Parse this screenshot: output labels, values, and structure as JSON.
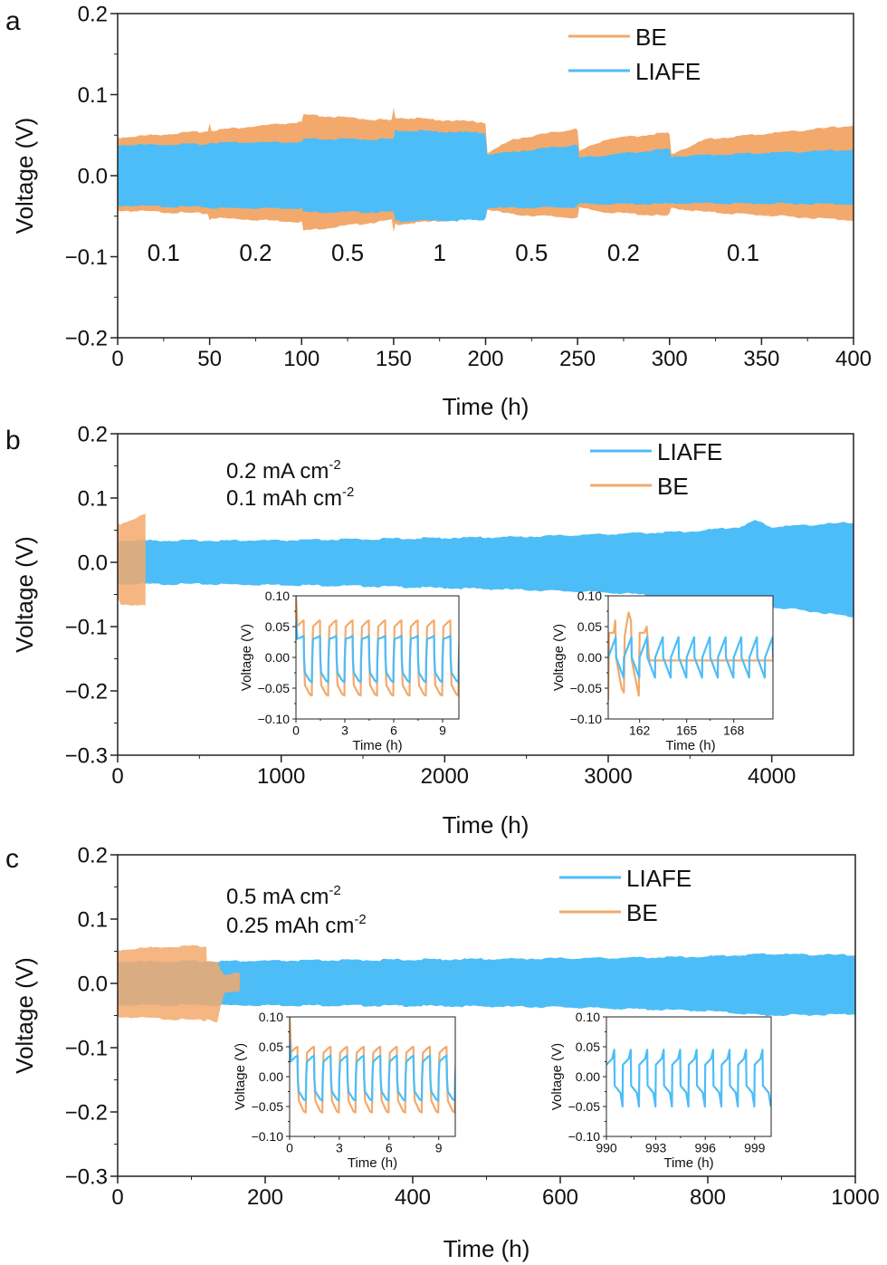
{
  "colors": {
    "BE": "#f3a96c",
    "LIAFE": "#4dbdf7",
    "overlap": "#d7a07a",
    "axis": "#222222"
  },
  "chart_data": [
    {
      "panel": "a",
      "type": "area",
      "title": "",
      "xlabel": "Time (h)",
      "ylabel": "Voltage (V)",
      "xlim": [
        0,
        400
      ],
      "ylim": [
        -0.2,
        0.2
      ],
      "xticks": [
        0,
        50,
        100,
        150,
        200,
        250,
        300,
        350,
        400
      ],
      "yticks": [
        -0.2,
        -0.1,
        0.0,
        0.1,
        0.2
      ],
      "ytick_labels": [
        "−0.2",
        "−0.1",
        "0.0",
        "0.1",
        "0.2"
      ],
      "legend": {
        "position": "top-right",
        "entries": [
          "BE",
          "LIAFE"
        ]
      },
      "annotations": [
        {
          "text": "0.1",
          "x": 25
        },
        {
          "text": "0.2",
          "x": 75
        },
        {
          "text": "0.5",
          "x": 125
        },
        {
          "text": "1",
          "x": 175
        },
        {
          "text": "0.5",
          "x": 225
        },
        {
          "text": "0.2",
          "x": 275
        },
        {
          "text": "0.1",
          "x": 340
        }
      ],
      "series": [
        {
          "name": "BE",
          "kind": "envelope",
          "x": [
            0,
            49,
            50,
            51,
            100,
            101,
            149,
            150,
            151,
            199,
            200,
            201,
            215,
            249,
            250,
            251,
            265,
            299,
            300,
            301,
            320,
            400
          ],
          "upper": [
            0.047,
            0.055,
            0.065,
            0.056,
            0.066,
            0.075,
            0.068,
            0.083,
            0.072,
            0.066,
            0.065,
            0.028,
            0.045,
            0.058,
            0.056,
            0.03,
            0.045,
            0.053,
            0.05,
            0.027,
            0.045,
            0.062
          ],
          "lower": [
            -0.043,
            -0.047,
            -0.055,
            -0.052,
            -0.057,
            -0.068,
            -0.055,
            -0.07,
            -0.06,
            -0.052,
            -0.052,
            -0.042,
            -0.048,
            -0.052,
            -0.052,
            -0.04,
            -0.045,
            -0.05,
            -0.047,
            -0.04,
            -0.045,
            -0.055
          ]
        },
        {
          "name": "LIAFE",
          "kind": "envelope",
          "x": [
            0,
            49,
            50,
            100,
            101,
            150,
            151,
            199,
            200,
            201,
            249,
            250,
            251,
            299,
            300,
            301,
            400
          ],
          "upper": [
            0.038,
            0.039,
            0.041,
            0.041,
            0.045,
            0.045,
            0.056,
            0.053,
            0.05,
            0.026,
            0.038,
            0.037,
            0.022,
            0.033,
            0.032,
            0.024,
            0.032
          ],
          "lower": [
            -0.037,
            -0.039,
            -0.04,
            -0.04,
            -0.045,
            -0.045,
            -0.056,
            -0.055,
            -0.051,
            -0.04,
            -0.039,
            -0.037,
            -0.035,
            -0.035,
            -0.035,
            -0.034,
            -0.035
          ]
        }
      ]
    },
    {
      "panel": "b",
      "type": "area",
      "title": "",
      "xlabel": "Time (h)",
      "ylabel": "Voltage (V)",
      "xlim": [
        0,
        4500
      ],
      "ylim": [
        -0.3,
        0.2
      ],
      "xticks": [
        0,
        1000,
        2000,
        3000,
        4000
      ],
      "yticks": [
        -0.3,
        -0.2,
        -0.1,
        0.0,
        0.1,
        0.2
      ],
      "ytick_labels": [
        "−0.3",
        "−0.2",
        "−0.1",
        "0.0",
        "0.1",
        "0.2"
      ],
      "legend": {
        "position": "top-right",
        "entries": [
          "LIAFE",
          "BE"
        ]
      },
      "annotations": [
        {
          "text": "0.2   mA cm",
          "sup": "-2"
        },
        {
          "text": "0.1 mAh cm",
          "sup": "-2"
        }
      ],
      "series": [
        {
          "name": "BE",
          "kind": "envelope",
          "x": [
            0,
            20,
            170,
            171
          ],
          "upper": [
            0.06,
            0.06,
            0.075,
            0.0
          ],
          "lower": [
            -0.055,
            -0.065,
            -0.068,
            0.0
          ]
        },
        {
          "name": "LIAFE",
          "kind": "envelope",
          "x": [
            0,
            500,
            1000,
            1500,
            2000,
            2500,
            3000,
            3500,
            3800,
            3900,
            4000,
            4200,
            4500
          ],
          "upper": [
            0.034,
            0.034,
            0.034,
            0.036,
            0.038,
            0.04,
            0.044,
            0.048,
            0.055,
            0.065,
            0.055,
            0.058,
            0.062
          ],
          "lower": [
            -0.034,
            -0.034,
            -0.035,
            -0.037,
            -0.04,
            -0.043,
            -0.047,
            -0.055,
            -0.065,
            -0.09,
            -0.07,
            -0.075,
            -0.085
          ]
        }
      ],
      "insets": [
        {
          "xlabel": "Time (h)",
          "ylabel": "Voltage (V)",
          "xlim": [
            0,
            10
          ],
          "ylim": [
            -0.1,
            0.1
          ],
          "xticks": [
            0,
            3,
            6,
            9
          ],
          "yticks": [
            -0.1,
            -0.05,
            0.0,
            0.05,
            0.1
          ],
          "ytick_labels": [
            "−0.10",
            "−0.05",
            "0.00",
            "0.05",
            "0.10"
          ],
          "series": [
            {
              "name": "BE",
              "kind": "square-wave",
              "start": 0,
              "period": 1.0,
              "first_peak": 0.1,
              "high": [
                0.045,
                0.06
              ],
              "low": [
                -0.045,
                -0.062
              ],
              "cycles": 10
            },
            {
              "name": "LIAFE",
              "kind": "square-wave",
              "start": 0,
              "period": 1.0,
              "first_peak": 0.06,
              "high": [
                0.025,
                0.035
              ],
              "low": [
                -0.025,
                -0.04
              ],
              "cycles": 10
            }
          ]
        },
        {
          "xlabel": "Time (h)",
          "ylabel": "Voltage (V)",
          "xlim": [
            160,
            170.5
          ],
          "ylim": [
            -0.1,
            0.1
          ],
          "xticks": [
            162,
            165,
            168
          ],
          "yticks": [
            -0.1,
            -0.05,
            0.0,
            0.05,
            0.1
          ],
          "ytick_labels": [
            "−0.10",
            "−0.05",
            "0.00",
            "0.05",
            "0.10"
          ],
          "series": [
            {
              "name": "BE",
              "kind": "failure",
              "start": 160,
              "end_active": 162.6,
              "period": 1.0,
              "high": [
                0.04,
                0.073
              ],
              "low": [
                -0.055,
                -0.062
              ],
              "flat": -0.005
            },
            {
              "name": "LIAFE",
              "kind": "sawtooth",
              "start": 160,
              "period": 1.0,
              "high": 0.033,
              "low": -0.033,
              "cycles": 11
            }
          ]
        }
      ]
    },
    {
      "panel": "c",
      "type": "area",
      "title": "",
      "xlabel": "Time (h)",
      "ylabel": "Voltage (V)",
      "xlim": [
        0,
        1000
      ],
      "ylim": [
        -0.3,
        0.2
      ],
      "xticks": [
        0,
        200,
        400,
        600,
        800,
        1000
      ],
      "yticks": [
        -0.3,
        -0.2,
        -0.1,
        0.0,
        0.1,
        0.2
      ],
      "ytick_labels": [
        "−0.3",
        "−0.2",
        "−0.1",
        "0.0",
        "0.1",
        "0.2"
      ],
      "legend": {
        "position": "top-right",
        "entries": [
          "LIAFE",
          "BE"
        ]
      },
      "annotations": [
        {
          "text": "0.5   mA cm",
          "sup": "-2"
        },
        {
          "text": "0.25 mAh cm",
          "sup": "-2"
        }
      ],
      "series": [
        {
          "name": "BE",
          "kind": "envelope",
          "x": [
            0,
            60,
            120,
            121,
            135,
            140,
            145,
            160,
            165,
            166
          ],
          "upper": [
            0.052,
            0.057,
            0.058,
            0.035,
            0.035,
            0.02,
            0.012,
            0.016,
            0.016,
            0.0
          ],
          "lower": [
            -0.052,
            -0.055,
            -0.058,
            -0.055,
            -0.06,
            -0.035,
            -0.015,
            -0.013,
            -0.014,
            0.0
          ]
        },
        {
          "name": "LIAFE",
          "kind": "envelope",
          "x": [
            0,
            200,
            400,
            600,
            700,
            800,
            880,
            1000
          ],
          "upper": [
            0.034,
            0.035,
            0.037,
            0.039,
            0.04,
            0.042,
            0.046,
            0.044
          ],
          "lower": [
            -0.034,
            -0.034,
            -0.035,
            -0.037,
            -0.04,
            -0.043,
            -0.05,
            -0.048
          ]
        }
      ],
      "insets": [
        {
          "xlabel": "Time (h)",
          "ylabel": "Voltage (V)",
          "xlim": [
            0,
            10
          ],
          "ylim": [
            -0.1,
            0.1
          ],
          "xticks": [
            0,
            3,
            6,
            9
          ],
          "yticks": [
            -0.1,
            -0.05,
            0.0,
            0.05,
            0.1
          ],
          "ytick_labels": [
            "−0.10",
            "−0.05",
            "0.00",
            "0.05",
            "0.10"
          ],
          "series": [
            {
              "name": "BE",
              "kind": "square-wave",
              "start": 0,
              "period": 1.0,
              "first_peak": 0.1,
              "high": [
                0.035,
                0.05
              ],
              "low": [
                -0.04,
                -0.06
              ],
              "cycles": 10
            },
            {
              "name": "LIAFE",
              "kind": "square-wave",
              "start": 0,
              "period": 1.0,
              "first_peak": 0.06,
              "high": [
                0.02,
                0.035
              ],
              "low": [
                -0.025,
                -0.04
              ],
              "cycles": 10
            }
          ]
        },
        {
          "xlabel": "Time (h)",
          "ylabel": "Voltage (V)",
          "xlim": [
            990,
            1000
          ],
          "ylim": [
            -0.1,
            0.1
          ],
          "xticks": [
            990,
            993,
            996,
            999
          ],
          "yticks": [
            -0.1,
            -0.05,
            0.0,
            0.05,
            0.1
          ],
          "ytick_labels": [
            "−0.10",
            "−0.05",
            "0.00",
            "0.05",
            "0.10"
          ],
          "series": [
            {
              "name": "LIAFE",
              "kind": "sawtooth-step",
              "start": 990,
              "period": 1.0,
              "high": 0.045,
              "mid_high": 0.02,
              "low": -0.05,
              "mid_low": -0.015,
              "cycles": 10
            }
          ]
        }
      ]
    }
  ]
}
